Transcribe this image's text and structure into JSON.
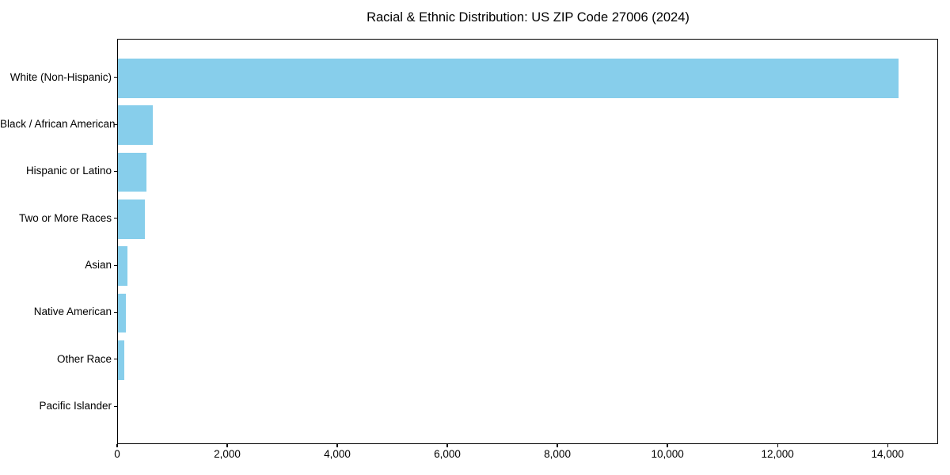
{
  "chart_data": {
    "type": "bar",
    "orientation": "horizontal",
    "title": "Racial & Ethnic Distribution: US ZIP Code 27006 (2024)",
    "categories": [
      "White (Non-Hispanic)",
      "Black / African American",
      "Hispanic or Latino",
      "Two or More Races",
      "Asian",
      "Native American",
      "Other Race",
      "Pacific Islander"
    ],
    "values": [
      14190,
      640,
      520,
      490,
      175,
      145,
      110,
      0
    ],
    "xlabel": "",
    "ylabel": "",
    "x_ticks": [
      0,
      2000,
      4000,
      6000,
      8000,
      10000,
      12000,
      14000
    ],
    "x_tick_labels": [
      "0",
      "2,000",
      "4,000",
      "6,000",
      "8,000",
      "10,000",
      "12,000",
      "14,000"
    ],
    "xlim": [
      0,
      14890
    ],
    "bar_color": "#87CEEB",
    "background_color": "#FFFFFF",
    "grid": false,
    "legend": null
  }
}
